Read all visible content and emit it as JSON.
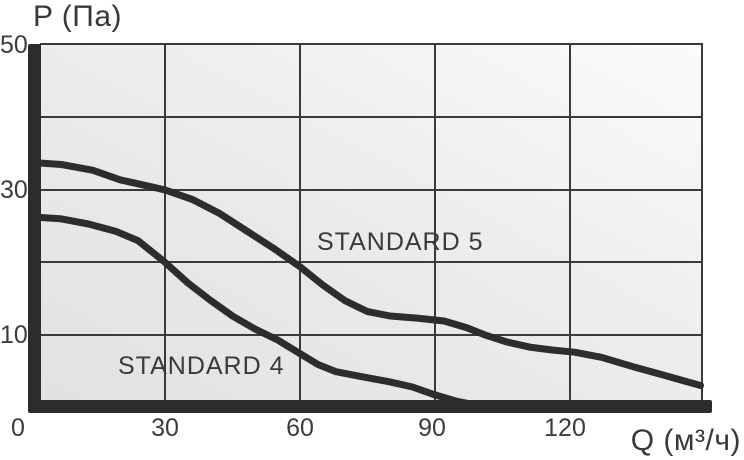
{
  "chart_data": {
    "type": "line",
    "title": "",
    "xlabel": "Q (м³/ч)",
    "ylabel": "P (Па)",
    "xlim": [
      0,
      150
    ],
    "ylim": [
      0,
      50
    ],
    "grid": true,
    "legend_position": "inline-labels",
    "x_ticks": [
      0,
      30,
      60,
      90,
      120
    ],
    "y_ticks": [
      0,
      10,
      20,
      30,
      40,
      50
    ],
    "x_tick_labels": [
      "0",
      "30",
      "60",
      "90",
      "120"
    ],
    "y_tick_labels": [
      "50",
      "30",
      "10"
    ],
    "x_gridlines": [
      30,
      60,
      90,
      120
    ],
    "y_gridlines": [
      10,
      20,
      30,
      40
    ],
    "series": [
      {
        "name": "STANDARD 5",
        "points": [
          [
            0,
            33.8
          ],
          [
            7,
            33.5
          ],
          [
            14,
            32.7
          ],
          [
            20,
            31.4
          ],
          [
            25,
            30.7
          ],
          [
            30,
            30
          ],
          [
            36,
            28.7
          ],
          [
            42,
            26.8
          ],
          [
            48,
            24.4
          ],
          [
            54,
            22.0
          ],
          [
            60,
            19.4
          ],
          [
            65,
            16.9
          ],
          [
            70,
            14.7
          ],
          [
            75,
            13.2
          ],
          [
            80,
            12.6
          ],
          [
            86,
            12.3
          ],
          [
            92,
            11.9
          ],
          [
            97,
            11.0
          ],
          [
            101,
            10.0
          ],
          [
            106,
            9.0
          ],
          [
            111,
            8.3
          ],
          [
            116,
            7.9
          ],
          [
            121,
            7.6
          ],
          [
            127,
            6.9
          ],
          [
            134,
            5.6
          ],
          [
            141,
            4.4
          ],
          [
            149,
            3.0
          ]
        ]
      },
      {
        "name": "STANDARD 4",
        "points": [
          [
            0,
            26.3
          ],
          [
            7,
            26.0
          ],
          [
            13,
            25.3
          ],
          [
            19,
            24.3
          ],
          [
            24,
            23.0
          ],
          [
            30,
            20.0
          ],
          [
            35,
            17.2
          ],
          [
            40,
            14.8
          ],
          [
            45,
            12.6
          ],
          [
            50,
            10.8
          ],
          [
            55,
            9.3
          ],
          [
            60,
            7.4
          ],
          [
            64,
            5.9
          ],
          [
            68,
            4.9
          ],
          [
            73,
            4.3
          ],
          [
            80,
            3.5
          ],
          [
            85,
            2.8
          ],
          [
            90,
            1.7
          ],
          [
            95,
            0.8
          ],
          [
            100,
            0.2
          ]
        ]
      }
    ],
    "colors": {
      "curve": "#2d2d2d",
      "axis_bar": "#2c2c2c",
      "grid": "#3a3a3a",
      "text": "#3c3c3c",
      "plot_bg_from": "#e2e2e2",
      "plot_bg_to": "#fbfbfb",
      "page_bg": "#ffffff"
    }
  }
}
